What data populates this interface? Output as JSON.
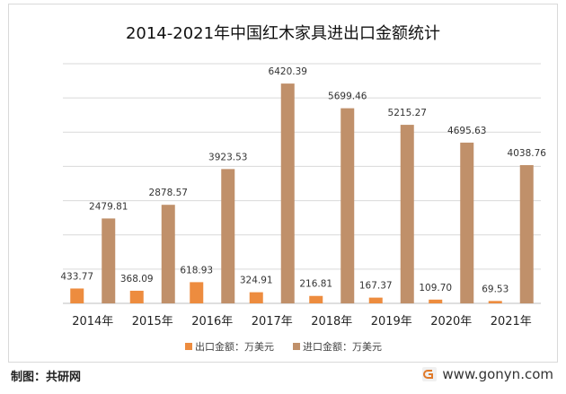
{
  "chart_data": {
    "type": "bar",
    "title": "2014-2021年中国红木家具进出口金额统计",
    "categories": [
      "2014年",
      "2015年",
      "2016年",
      "2017年",
      "2018年",
      "2019年",
      "2020年",
      "2021年"
    ],
    "series": [
      {
        "name": "出口金额：万美元",
        "color": "#ED8C3F",
        "values": [
          433.77,
          368.09,
          618.93,
          324.91,
          216.81,
          167.37,
          109.7,
          69.53
        ],
        "labels": [
          "433.77",
          "368.09",
          "618.93",
          "324.91",
          "216.81",
          "167.37",
          "109.70",
          "69.53"
        ]
      },
      {
        "name": "进口金额：万美元",
        "color": "#C0906A",
        "values": [
          2479.81,
          2878.57,
          3923.53,
          6420.39,
          5699.46,
          5215.27,
          4695.63,
          4038.76
        ],
        "labels": [
          "2479.81",
          "2878.57",
          "3923.53",
          "6420.39",
          "5699.46",
          "5215.27",
          "4695.63",
          "4038.76"
        ]
      }
    ],
    "ylim": [
      0,
      7000
    ],
    "grid": true,
    "legend": "bottom"
  },
  "footer": {
    "source": "制图：共研网",
    "site": "www.gonyn.com",
    "icon": "gonyn-logo-icon"
  }
}
